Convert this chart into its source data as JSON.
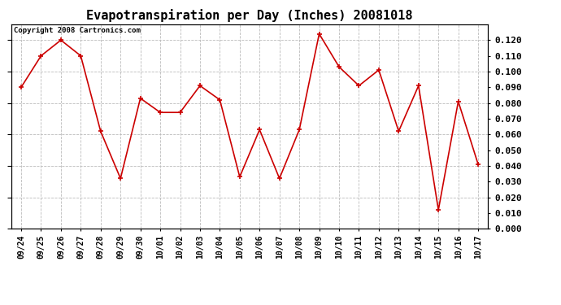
{
  "title": "Evapotranspiration per Day (Inches) 20081018",
  "copyright_text": "Copyright 2008 Cartronics.com",
  "x_labels": [
    "09/24",
    "09/25",
    "09/26",
    "09/27",
    "09/28",
    "09/29",
    "09/30",
    "10/01",
    "10/02",
    "10/03",
    "10/04",
    "10/05",
    "10/06",
    "10/07",
    "10/08",
    "10/09",
    "10/10",
    "10/11",
    "10/12",
    "10/13",
    "10/14",
    "10/15",
    "10/16",
    "10/17"
  ],
  "y_values": [
    0.09,
    0.11,
    0.12,
    0.11,
    0.062,
    0.032,
    0.083,
    0.074,
    0.074,
    0.091,
    0.082,
    0.033,
    0.063,
    0.032,
    0.063,
    0.124,
    0.103,
    0.091,
    0.101,
    0.062,
    0.091,
    0.012,
    0.081,
    0.041
  ],
  "ylim": [
    0.0,
    0.13
  ],
  "yticks": [
    0.0,
    0.01,
    0.02,
    0.03,
    0.04,
    0.05,
    0.06,
    0.07,
    0.08,
    0.09,
    0.1,
    0.11,
    0.12
  ],
  "line_color": "#cc0000",
  "marker": "+",
  "marker_size": 5,
  "marker_linewidth": 1.2,
  "line_width": 1.2,
  "background_color": "#ffffff",
  "grid_color": "#bbbbbb",
  "title_fontsize": 11,
  "tick_fontsize": 7,
  "ytick_fontsize": 8,
  "copyright_fontsize": 6.5
}
